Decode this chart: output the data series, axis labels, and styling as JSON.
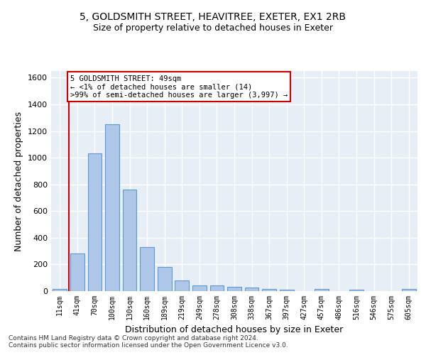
{
  "title1": "5, GOLDSMITH STREET, HEAVITREE, EXETER, EX1 2RB",
  "title2": "Size of property relative to detached houses in Exeter",
  "xlabel": "Distribution of detached houses by size in Exeter",
  "ylabel": "Number of detached properties",
  "bar_color": "#aec6e8",
  "bar_edge_color": "#5b9bd5",
  "background_color": "#e8eef5",
  "grid_color": "#ffffff",
  "annotation_line_color": "#cc0000",
  "annotation_box_color": "#cc0000",
  "annotation_text": "5 GOLDSMITH STREET: 49sqm\n← <1% of detached houses are smaller (14)\n>99% of semi-detached houses are larger (3,997) →",
  "property_sqm": 49,
  "property_bin_index": 1,
  "bin_labels": [
    "11sqm",
    "41sqm",
    "70sqm",
    "100sqm",
    "130sqm",
    "160sqm",
    "189sqm",
    "219sqm",
    "249sqm",
    "278sqm",
    "308sqm",
    "338sqm",
    "367sqm",
    "397sqm",
    "427sqm",
    "457sqm",
    "486sqm",
    "516sqm",
    "546sqm",
    "575sqm",
    "605sqm"
  ],
  "bin_values": [
    14,
    280,
    1035,
    1250,
    760,
    330,
    180,
    80,
    45,
    40,
    30,
    25,
    15,
    12,
    0,
    15,
    0,
    10,
    0,
    0,
    15
  ],
  "ylim": [
    0,
    1650
  ],
  "yticks": [
    0,
    200,
    400,
    600,
    800,
    1000,
    1200,
    1400,
    1600
  ],
  "footnote1": "Contains HM Land Registry data © Crown copyright and database right 2024.",
  "footnote2": "Contains public sector information licensed under the Open Government Licence v3.0."
}
